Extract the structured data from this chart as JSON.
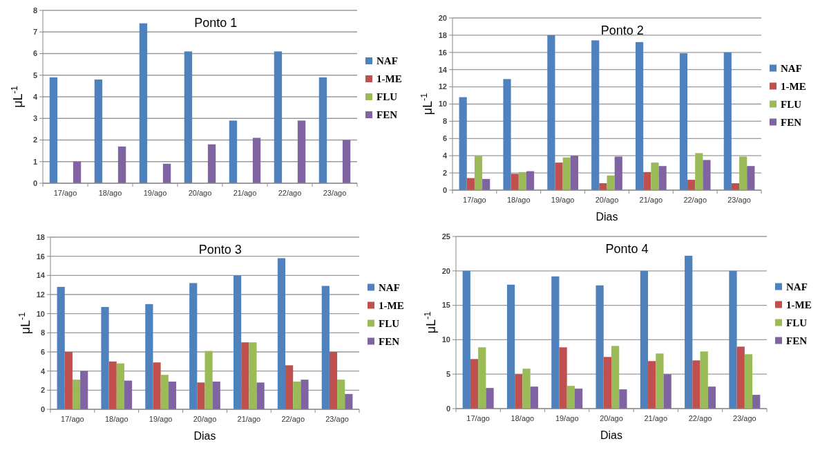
{
  "chart_data": [
    {
      "type": "bar",
      "title": "Ponto 1",
      "ylabel": "μL$^{-1}$",
      "categories": [
        "17/ago",
        "18/ago",
        "19/ago",
        "20/ago",
        "21/ago",
        "22/ago",
        "23/ago"
      ],
      "ylim": [
        0,
        8
      ],
      "yticks": [
        0,
        1,
        2,
        3,
        4,
        5,
        6,
        7,
        8
      ],
      "grid": "y",
      "legend": "right",
      "series": [
        {
          "name": "NAF",
          "color": "#4f81bd",
          "values": [
            4.9,
            4.8,
            7.4,
            6.1,
            2.9,
            6.1,
            4.9
          ]
        },
        {
          "name": "1-ME",
          "color": "#c0504d",
          "values": [
            null,
            null,
            null,
            null,
            null,
            null,
            null
          ]
        },
        {
          "name": "FLU",
          "color": "#9bbb59",
          "values": [
            null,
            null,
            null,
            null,
            null,
            null,
            null
          ]
        },
        {
          "name": "FEN",
          "color": "#8064a2",
          "values": [
            1.0,
            1.7,
            0.9,
            1.8,
            2.1,
            2.9,
            2.0
          ]
        }
      ]
    },
    {
      "type": "bar",
      "title": "Ponto 2",
      "xlabel": "Dias",
      "ylabel": "μL$^{-1}$",
      "categories": [
        "17/ago",
        "18/ago",
        "19/ago",
        "20/ago",
        "21/ago",
        "22/ago",
        "23/ago"
      ],
      "ylim": [
        0,
        20
      ],
      "yticks": [
        0,
        2,
        4,
        6,
        8,
        10,
        12,
        14,
        16,
        18,
        20
      ],
      "grid": "y",
      "legend": "right",
      "series": [
        {
          "name": "NAF",
          "color": "#4f81bd",
          "values": [
            10.8,
            12.9,
            18,
            17.4,
            17.2,
            15.9,
            16
          ]
        },
        {
          "name": "1-ME",
          "color": "#c0504d",
          "values": [
            1.4,
            1.9,
            3.2,
            0.8,
            2.1,
            1.2,
            0.8
          ]
        },
        {
          "name": "FLU",
          "color": "#9bbb59",
          "values": [
            4,
            2.1,
            3.8,
            1.7,
            3.2,
            4.3,
            3.9
          ]
        },
        {
          "name": "FEN",
          "color": "#8064a2",
          "values": [
            1.3,
            2.2,
            4,
            3.9,
            2.8,
            3.5,
            2.8
          ]
        }
      ]
    },
    {
      "type": "bar",
      "title": "Ponto 3",
      "xlabel": "Dias",
      "ylabel": "μL$^{-1}$",
      "categories": [
        "17/ago",
        "18/ago",
        "19/ago",
        "20/ago",
        "21/ago",
        "22/ago",
        "23/ago"
      ],
      "ylim": [
        0,
        18
      ],
      "yticks": [
        0,
        2,
        4,
        6,
        8,
        10,
        12,
        14,
        16,
        18
      ],
      "grid": "y",
      "legend": "right",
      "series": [
        {
          "name": "NAF",
          "color": "#4f81bd",
          "values": [
            12.8,
            10.7,
            11,
            13.2,
            14,
            15.8,
            12.9
          ]
        },
        {
          "name": "1-ME",
          "color": "#c0504d",
          "values": [
            6,
            5,
            4.9,
            2.8,
            7,
            4.6,
            6
          ]
        },
        {
          "name": "FLU",
          "color": "#9bbb59",
          "values": [
            3.1,
            4.8,
            3.6,
            6.1,
            7,
            2.9,
            3.1
          ]
        },
        {
          "name": "FEN",
          "color": "#8064a2",
          "values": [
            4,
            3,
            2.9,
            2.9,
            2.8,
            3.1,
            1.6
          ]
        }
      ]
    },
    {
      "type": "bar",
      "title": "Ponto 4",
      "xlabel": "Dias",
      "ylabel": "μL$^{-1}$",
      "categories": [
        "17/ago",
        "18/ago",
        "19/ago",
        "20/ago",
        "21/ago",
        "22/ago",
        "23/ago"
      ],
      "ylim": [
        0,
        25
      ],
      "yticks": [
        0,
        5,
        10,
        15,
        20,
        25
      ],
      "grid": "y",
      "legend": "right",
      "series": [
        {
          "name": "NAF",
          "color": "#4f81bd",
          "values": [
            20,
            18,
            19.2,
            17.9,
            20,
            22.2,
            20
          ]
        },
        {
          "name": "1-ME",
          "color": "#c0504d",
          "values": [
            7.2,
            5,
            8.9,
            7.5,
            6.9,
            7,
            9
          ]
        },
        {
          "name": "FLU",
          "color": "#9bbb59",
          "values": [
            8.9,
            5.8,
            3.3,
            9.1,
            8,
            8.3,
            7.9
          ]
        },
        {
          "name": "FEN",
          "color": "#8064a2",
          "values": [
            3,
            3.2,
            2.9,
            2.8,
            5,
            3.2,
            2
          ]
        }
      ]
    }
  ]
}
